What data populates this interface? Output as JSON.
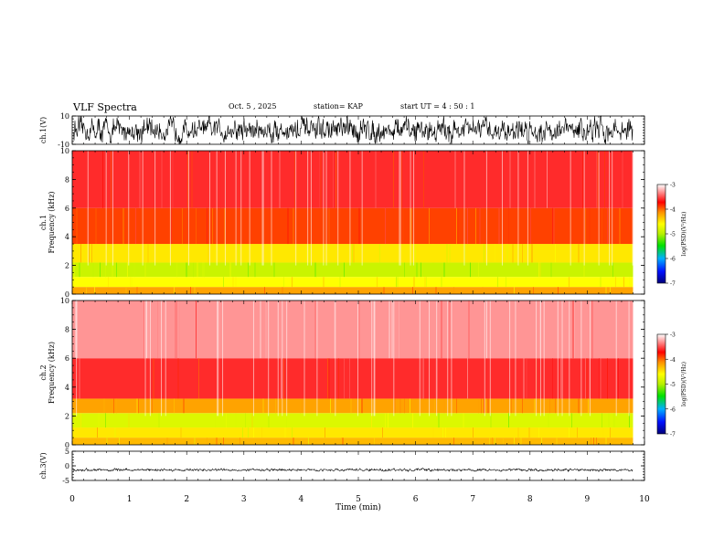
{
  "header": {
    "title": "VLF Spectra",
    "date": "Oct. 5 , 2025",
    "station": "station= KAP",
    "start_ut": "start  UT  =   4 : 50 : 1"
  },
  "chart_data": [
    {
      "type": "line",
      "panel": "ch1-waveform",
      "ylabel": "ch.1(V)",
      "ylim": [
        -10,
        10
      ],
      "y_ticks": [
        "10",
        "-10"
      ],
      "xlim": [
        0,
        10
      ],
      "data_end_min": 9.8,
      "description_values": {
        "baseline": 0,
        "amplitude_range": [
          -7,
          7
        ]
      }
    },
    {
      "type": "heatmap",
      "panel": "ch1-spectrogram",
      "ylabel": "ch.1",
      "ylabel2": "Frequency  (kHz)",
      "ylim": [
        0,
        10
      ],
      "y_ticks": [
        "0",
        "2",
        "4",
        "6",
        "8",
        "10"
      ],
      "xlim": [
        0,
        10
      ],
      "data_end_min": 9.8,
      "intensity_bands_khz": [
        {
          "from": 0,
          "to": 0.5,
          "level": -4.2
        },
        {
          "from": 0.5,
          "to": 1.2,
          "level": -4.6
        },
        {
          "from": 1.2,
          "to": 2.2,
          "level": -4.9
        },
        {
          "from": 2.2,
          "to": 3.5,
          "level": -4.5
        },
        {
          "from": 3.5,
          "to": 6,
          "level": -3.9
        },
        {
          "from": 6,
          "to": 10,
          "level": -3.6
        }
      ],
      "colorbar": {
        "label": "log(PSD)(V²/Hz)",
        "ticks": [
          "-3",
          "-4",
          "-5",
          "-6",
          "-7"
        ],
        "range": [
          -7,
          -3
        ]
      }
    },
    {
      "type": "heatmap",
      "panel": "ch2-spectrogram",
      "ylabel": "ch.2",
      "ylabel2": "Frequency  (kHz)",
      "ylim": [
        0,
        10
      ],
      "y_ticks": [
        "0",
        "2",
        "4",
        "6",
        "8",
        "10"
      ],
      "xlim": [
        0,
        10
      ],
      "data_end_min": 9.8,
      "intensity_bands_khz": [
        {
          "from": 0,
          "to": 0.5,
          "level": -4.3
        },
        {
          "from": 0.5,
          "to": 1.2,
          "level": -4.5
        },
        {
          "from": 1.2,
          "to": 2.2,
          "level": -4.8
        },
        {
          "from": 2.2,
          "to": 3.2,
          "level": -4.2
        },
        {
          "from": 3.2,
          "to": 6,
          "level": -3.6
        },
        {
          "from": 6,
          "to": 10,
          "level": -3.3
        }
      ],
      "colorbar": {
        "label": "log(PSD)(V²/Hz)",
        "ticks": [
          "-3",
          "-4",
          "-5",
          "-6",
          "-7"
        ],
        "range": [
          -7,
          -3
        ]
      }
    },
    {
      "type": "line",
      "panel": "ch3-waveform",
      "ylabel": "ch.3(V)",
      "ylim": [
        -5,
        5
      ],
      "y_ticks": [
        "5",
        "0",
        "-5"
      ],
      "xlim": [
        0,
        10
      ],
      "data_end_min": 9.8,
      "description_values": {
        "baseline": -1.4,
        "amplitude_range": [
          -1.9,
          -0.9
        ]
      }
    }
  ],
  "x_axis": {
    "label": "Time  (min)",
    "ticks": [
      "0",
      "1",
      "2",
      "3",
      "4",
      "5",
      "6",
      "7",
      "8",
      "9",
      "10"
    ]
  },
  "colors": {
    "axis": "#000000",
    "trace": "#000000"
  }
}
